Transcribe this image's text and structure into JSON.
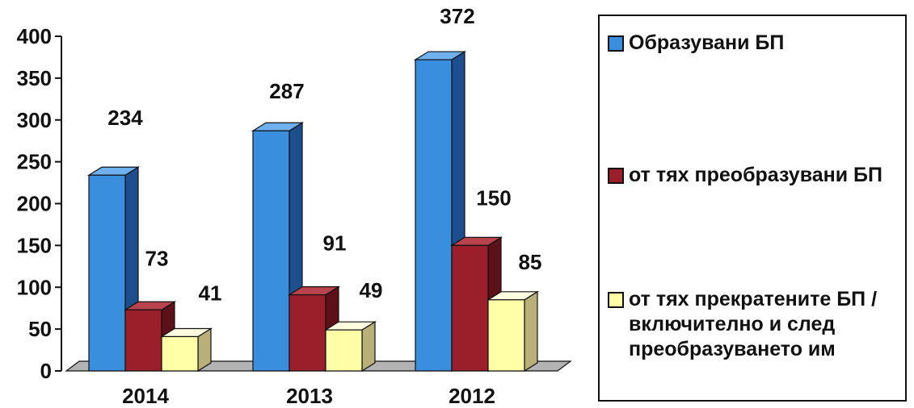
{
  "chart_data": {
    "type": "bar",
    "categories": [
      "2014",
      "2013",
      "2012"
    ],
    "series": [
      {
        "name": "Образувани БП",
        "values": [
          234,
          287,
          372
        ],
        "color": "#3a8ede",
        "side_color": "#1d4f8e",
        "top_color": "#6fb0ee"
      },
      {
        "name": "от тях преобразувани БП",
        "values": [
          73,
          91,
          150
        ],
        "color": "#9b1f2a",
        "side_color": "#5c1018",
        "top_color": "#b8434c"
      },
      {
        "name": "от тях прекратените БП /включително и след преобразуването им",
        "values": [
          41,
          49,
          85
        ],
        "color": "#ffffa8",
        "side_color": "#b9b079",
        "top_color": "#fffde0"
      }
    ],
    "y_ticks": [
      "0",
      "50",
      "100",
      "150",
      "200",
      "250",
      "300",
      "350",
      "400"
    ],
    "ylim": [
      0,
      400
    ],
    "title": "",
    "xlabel": "",
    "ylabel": "",
    "grid": false,
    "legend_position": "right"
  }
}
